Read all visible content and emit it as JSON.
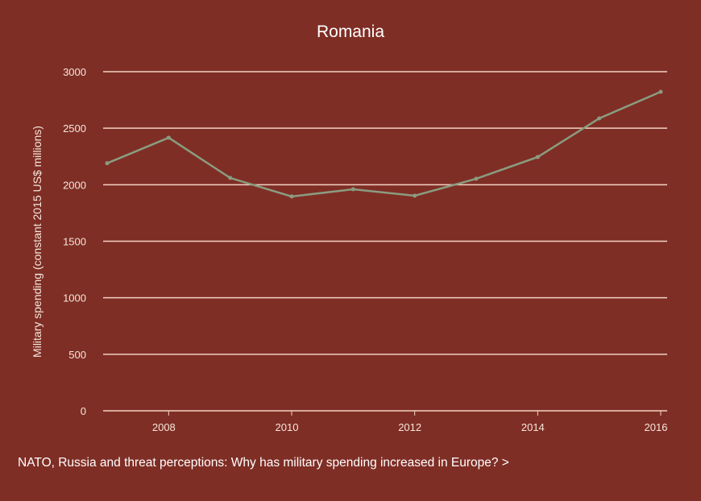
{
  "chart_data": {
    "type": "line",
    "title": "Romania",
    "xlabel": "",
    "ylabel": "Military spending (constant 2015 US$ millions)",
    "x": [
      2007,
      2008,
      2009,
      2010,
      2011,
      2012,
      2013,
      2014,
      2015,
      2016
    ],
    "series": [
      {
        "values": [
          2190,
          2416,
          2060,
          1896,
          1960,
          1903,
          2053,
          2245,
          2587,
          2822
        ]
      }
    ],
    "xlim": [
      2007,
      2016
    ],
    "ylim": [
      0,
      3000
    ],
    "xticks": [
      "2008",
      "2010",
      "2012",
      "2014",
      "2016"
    ],
    "yticks": [
      "0",
      "500",
      "1000",
      "1500",
      "2000",
      "2500",
      "3000"
    ],
    "grid": "horizontal",
    "legend": "none",
    "colors": {
      "background": "#7f2e25",
      "line": "#8a9c80",
      "grid": "#f2d2c4",
      "text": "#f5e6dc"
    }
  },
  "footer": {
    "link_text": "NATO, Russia and threat perceptions: Why has military spending increased in Europe? >"
  }
}
